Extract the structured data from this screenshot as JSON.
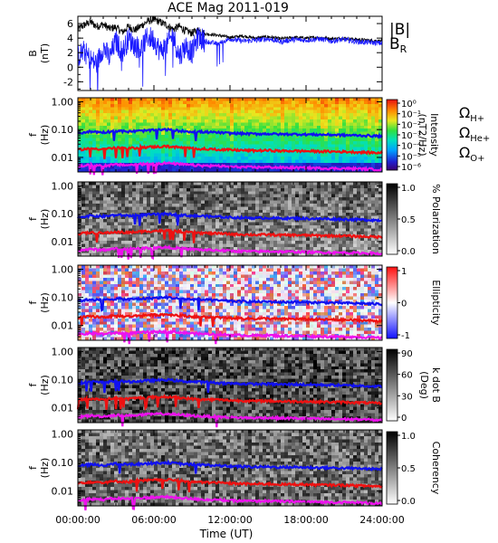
{
  "title": "ACE Mag 2011-019",
  "x_axis": {
    "label": "Time (UT)",
    "ticks": [
      "00:00:00",
      "06:00:00",
      "12:00:00",
      "18:00:00",
      "24:00:00"
    ],
    "range_hours": [
      0,
      24
    ]
  },
  "colors": {
    "b_total": "#000000",
    "b_radial": "#1a1aff",
    "omega_h": "#1010f0",
    "omega_he": "#ee1111",
    "omega_o": "#ee11ee"
  },
  "chart_data": [
    {
      "type": "line",
      "name": "magnetic-field-panel",
      "ylabel": "B",
      "yunit": "(nT)",
      "ylim": [
        -3.2,
        7
      ],
      "yticks": [
        -2,
        0,
        2,
        4,
        6
      ],
      "series": [
        {
          "name": "|B|",
          "x": [
            0,
            0.5,
            1,
            1.5,
            2,
            2.5,
            3,
            3.5,
            4,
            4.5,
            5,
            5.5,
            6,
            6.5,
            7,
            7.5,
            8,
            8.5,
            9,
            9.5,
            10,
            11,
            12,
            13,
            14,
            15,
            16,
            17,
            18,
            19,
            20,
            21,
            22,
            23,
            24
          ],
          "values": [
            5.2,
            5.8,
            6.2,
            5.6,
            5.9,
            5.3,
            5.5,
            4.8,
            5.6,
            5.1,
            5.7,
            6.3,
            6.6,
            6.2,
            5.8,
            5.2,
            5.6,
            5.0,
            4.7,
            5.1,
            4.6,
            4.4,
            4.1,
            4.3,
            4.0,
            4.2,
            3.9,
            4.1,
            4.0,
            4.1,
            3.9,
            4.0,
            3.8,
            3.7,
            3.6
          ]
        },
        {
          "name": "BR",
          "x": [
            0,
            0.5,
            1,
            1.5,
            2,
            2.5,
            3,
            3.5,
            4,
            4.5,
            5,
            5.5,
            6,
            6.5,
            7,
            7.5,
            8,
            8.5,
            9,
            9.5,
            10,
            11,
            12,
            13,
            14,
            15,
            16,
            17,
            18,
            19,
            20,
            21,
            22,
            23,
            24
          ],
          "values": [
            1.5,
            2.2,
            1.0,
            0.5,
            2.8,
            1.2,
            3.6,
            2.0,
            4.0,
            3.0,
            2.5,
            4.2,
            3.8,
            2.2,
            3.0,
            4.5,
            1.5,
            3.0,
            2.0,
            4.2,
            3.6,
            3.2,
            3.9,
            3.6,
            3.7,
            3.9,
            3.5,
            3.8,
            3.7,
            3.9,
            3.6,
            3.8,
            3.5,
            3.4,
            3.3
          ]
        }
      ],
      "legend": [
        "|B|",
        "BR"
      ],
      "legend_position": "right"
    },
    {
      "type": "heatmap",
      "name": "power-spectral-density",
      "ylabel": "f",
      "yunit": "(Hz)",
      "yscale": "log",
      "ylim": [
        0.003,
        1.4
      ],
      "yticks": [
        "1.00",
        "0.10",
        "0.01"
      ],
      "colorbar": {
        "label": "Intensity",
        "unit": "(nT2/Hz)",
        "ticks": [
          "10⁰",
          "10⁻¹",
          "10⁻²",
          "10⁻³",
          "10⁻⁴",
          "10⁻⁵",
          "10⁻⁶"
        ],
        "colormap": "rainbow"
      },
      "legend": [
        "ΩH+",
        "ΩHe+",
        "ΩO+"
      ]
    },
    {
      "type": "heatmap",
      "name": "polarization",
      "ylabel": "f",
      "yunit": "(Hz)",
      "yscale": "log",
      "colorbar": {
        "label": "% Polarization",
        "ticks": [
          "1.0",
          "0.5",
          "0.0"
        ],
        "colormap": "gray"
      }
    },
    {
      "type": "heatmap",
      "name": "ellipticity",
      "ylabel": "f",
      "yunit": "(Hz)",
      "yscale": "log",
      "colorbar": {
        "label": "Ellipticity",
        "ticks": [
          "1",
          "0",
          "-1"
        ],
        "colormap": "blue-white-red"
      }
    },
    {
      "type": "heatmap",
      "name": "k-dot-b",
      "ylabel": "f",
      "yunit": "(Hz)",
      "yscale": "log",
      "colorbar": {
        "label": "k dot B",
        "unit": "(Deg)",
        "ticks": [
          "90",
          "60",
          "30",
          "0"
        ],
        "colormap": "gray"
      }
    },
    {
      "type": "heatmap",
      "name": "coherency",
      "ylabel": "f",
      "yunit": "(Hz)",
      "yscale": "log",
      "colorbar": {
        "label": "Coherency",
        "ticks": [
          "1.0",
          "0.5",
          "0.0"
        ],
        "colormap": "gray"
      }
    },
    {
      "type": "line",
      "name": "gyrofrequency-traces",
      "x": [
        0,
        1,
        2,
        3,
        4,
        5,
        6,
        7,
        8,
        9,
        10,
        11,
        12,
        13,
        14,
        15,
        16,
        17,
        18,
        19,
        20,
        21,
        22,
        23,
        24
      ],
      "series": [
        {
          "name": "ΩH+",
          "values": [
            0.075,
            0.085,
            0.08,
            0.09,
            0.085,
            0.09,
            0.095,
            0.1,
            0.09,
            0.085,
            0.082,
            0.078,
            0.074,
            0.072,
            0.07,
            0.071,
            0.068,
            0.069,
            0.067,
            0.066,
            0.065,
            0.063,
            0.062,
            0.06,
            0.058
          ]
        },
        {
          "name": "ΩHe+",
          "values": [
            0.019,
            0.021,
            0.02,
            0.022,
            0.021,
            0.023,
            0.024,
            0.025,
            0.023,
            0.021,
            0.02,
            0.0195,
            0.0185,
            0.018,
            0.0175,
            0.0178,
            0.017,
            0.0172,
            0.0168,
            0.0165,
            0.0162,
            0.016,
            0.0155,
            0.015,
            0.0145
          ]
        },
        {
          "name": "ΩO+",
          "values": [
            0.0048,
            0.0053,
            0.005,
            0.0055,
            0.0053,
            0.0057,
            0.006,
            0.0062,
            0.0057,
            0.0053,
            0.005,
            0.0049,
            0.0046,
            0.0045,
            0.0044,
            0.0045,
            0.0043,
            0.0043,
            0.0042,
            0.0041,
            0.004,
            0.004,
            0.0039,
            0.0038,
            0.0036
          ]
        }
      ]
    }
  ]
}
